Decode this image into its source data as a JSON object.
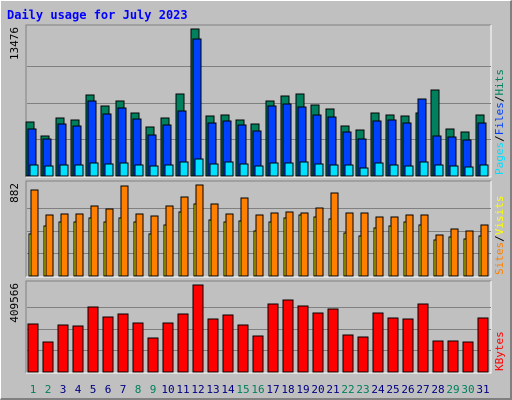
{
  "chart_data": {
    "type": "bar",
    "title": "Daily usage for July 2023",
    "colors": {
      "background": "#c0c0c0",
      "hits": "#00805c",
      "files": "#0040ff",
      "pages": "#00e0ff",
      "visits": "#ffff00",
      "sites": "#ff8000",
      "kbytes": "#ff0000",
      "title": "#0000ff",
      "weekday_label": "#000080",
      "weekend_label": "#00805c"
    },
    "categories": [
      "1",
      "2",
      "3",
      "4",
      "5",
      "6",
      "7",
      "8",
      "9",
      "10",
      "11",
      "12",
      "13",
      "14",
      "15",
      "16",
      "17",
      "18",
      "19",
      "20",
      "21",
      "22",
      "23",
      "24",
      "25",
      "26",
      "27",
      "28",
      "29",
      "30",
      "31"
    ],
    "weekend_days": [
      1,
      2,
      8,
      9,
      15,
      16,
      22,
      23,
      29,
      30
    ],
    "panels": [
      {
        "name": "hits-files-pages",
        "max_label": "13476",
        "ymax": 13476,
        "legend": [
          {
            "text": "Pages",
            "color": "#00e0ff"
          },
          {
            "text": "/",
            "color": "#000000"
          },
          {
            "text": "Files",
            "color": "#0040ff"
          },
          {
            "text": "/",
            "color": "#000000"
          },
          {
            "text": "Hits",
            "color": "#00805c"
          }
        ],
        "series": [
          {
            "name": "Hits",
            "color": "#00805c",
            "values": [
              4950,
              3700,
              5280,
              5150,
              7400,
              6400,
              6900,
              5750,
              4500,
              5280,
              7500,
              13476,
              5480,
              5600,
              5150,
              4800,
              6900,
              7300,
              7500,
              6500,
              6150,
              4600,
              4200,
              5780,
              5600,
              5480,
              5780,
              7850,
              4300,
              4050,
              5600
            ]
          },
          {
            "name": "Files",
            "color": "#0040ff",
            "values": [
              4350,
              3350,
              4750,
              4600,
              6900,
              5700,
              6200,
              5200,
              3800,
              4700,
              6000,
              12600,
              4850,
              5000,
              4700,
              4100,
              6400,
              6600,
              6300,
              5550,
              5400,
              4000,
              3400,
              5000,
              5100,
              4900,
              7100,
              3650,
              3550,
              3300,
              4850
            ]
          },
          {
            "name": "Pages",
            "color": "#00e0ff",
            "values": [
              1000,
              950,
              1050,
              1050,
              1200,
              1080,
              1150,
              1050,
              950,
              1050,
              1260,
              1530,
              1100,
              1250,
              1100,
              900,
              1200,
              1180,
              1270,
              1100,
              1050,
              1000,
              700,
              1200,
              1000,
              900,
              1300,
              980,
              960,
              800,
              1000
            ]
          }
        ]
      },
      {
        "name": "visits-sites",
        "max_label": "882",
        "ymax": 882,
        "legend": [
          {
            "text": "Sites",
            "color": "#ff8000"
          },
          {
            "text": "/",
            "color": "#000000"
          },
          {
            "text": "Visits",
            "color": "#ffff00"
          }
        ],
        "series": [
          {
            "name": "Sites",
            "color": "#ff8000",
            "values": [
              835,
              590,
              600,
              600,
              680,
              650,
              875,
              605,
              580,
              675,
              770,
              882,
              700,
              605,
              760,
              595,
              610,
              620,
              610,
              655,
              800,
              610,
              610,
              570,
              575,
              590,
              590,
              400,
              460,
              440,
              490
            ]
          },
          {
            "name": "Visits",
            "color": "#ffff00",
            "values": [
              410,
              480,
              520,
              520,
              560,
              520,
              560,
              520,
              410,
              490,
              620,
              700,
              540,
              520,
              530,
              440,
              520,
              560,
              590,
              570,
              550,
              420,
              390,
              470,
              480,
              520,
              490,
              350,
              380,
              360,
              390
            ]
          }
        ]
      },
      {
        "name": "kbytes",
        "max_label": "409566",
        "ymax": 409566,
        "legend": [
          {
            "text": "KBytes",
            "color": "#ff0000"
          }
        ],
        "series": [
          {
            "name": "KBytes",
            "color": "#ff0000",
            "values": [
              228000,
              139000,
              222000,
              215000,
              305000,
              260000,
              275000,
              230000,
              160000,
              232000,
              275000,
              409566,
              248000,
              270000,
              222000,
              170000,
              319000,
              339000,
              310000,
              280000,
              295000,
              175000,
              165000,
              276000,
              252000,
              249000,
              318000,
              148000,
              146000,
              140000,
              252000
            ]
          }
        ]
      }
    ]
  }
}
